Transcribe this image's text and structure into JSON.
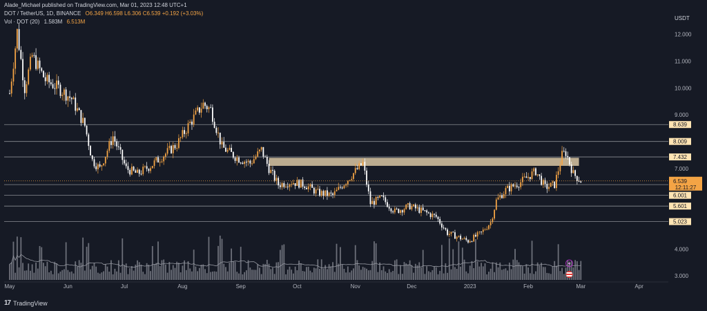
{
  "header": {
    "published": "Alade_Michael published on TradingView.com, Mar 01, 2023 12:48 UTC+1",
    "symbol": "DOT / TetherUS, 1D, BINANCE",
    "ohlc": "O6.349 H6.598 L6.306 C6.539 +0.192 (+3.03%)",
    "volume_label": "Vol · DOT (20)",
    "volume_value": "1.583M",
    "volume_ma": "6.513M"
  },
  "currency": "USDT",
  "brand": "TradingView",
  "colors": {
    "background": "#161a25",
    "up": "#f4a445",
    "down": "#ffffff",
    "level_line": "#8a8d94",
    "zone": "#d9c7a3"
  },
  "icons": [
    "tradingview-logo-icon",
    "lightning-icon",
    "us-flag-icon"
  ],
  "chart_data": {
    "type": "candlestick",
    "title": "DOT / TetherUS, 1D, BINANCE",
    "y_axis_ticks": [
      "12.000",
      "11.000",
      "10.000",
      "9.000",
      "8.000",
      "7.000",
      "6.000",
      "5.000",
      "4.000",
      "3.000"
    ],
    "x_axis_ticks": [
      "May",
      "Jun",
      "Jul",
      "Aug",
      "Sep",
      "Oct",
      "Nov",
      "Dec",
      "2023",
      "Feb",
      "Mar",
      "Apr"
    ],
    "ylim": [
      2.85,
      12.25
    ],
    "last_price": {
      "label": "6.539",
      "countdown": "12:11:27",
      "value": 6.539
    },
    "horizontal_levels": [
      {
        "value": 8.639,
        "label": "8.639"
      },
      {
        "value": 8.009,
        "label": "8.009"
      },
      {
        "value": 7.432,
        "label": "7.432"
      },
      {
        "value": 6.401,
        "label": "6.401"
      },
      {
        "value": 6.001,
        "label": "6.001"
      },
      {
        "value": 5.601,
        "label": "5.601"
      },
      {
        "value": 5.023,
        "label": "5.023"
      }
    ],
    "resistance_zone": {
      "from": 7.1,
      "to": 7.4
    },
    "price_path": [
      [
        "2022-05-01",
        9.8
      ],
      [
        "2022-05-05",
        12.1
      ],
      [
        "2022-05-09",
        10.0
      ],
      [
        "2022-05-13",
        11.2
      ],
      [
        "2022-05-20",
        10.3
      ],
      [
        "2022-05-27",
        10.0
      ],
      [
        "2022-06-03",
        9.6
      ],
      [
        "2022-06-10",
        8.6
      ],
      [
        "2022-06-14",
        7.3
      ],
      [
        "2022-06-18",
        7.0
      ],
      [
        "2022-06-25",
        8.2
      ],
      [
        "2022-07-02",
        7.0
      ],
      [
        "2022-07-08",
        6.8
      ],
      [
        "2022-07-15",
        7.1
      ],
      [
        "2022-07-22",
        7.5
      ],
      [
        "2022-07-29",
        7.9
      ],
      [
        "2022-08-05",
        8.7
      ],
      [
        "2022-08-12",
        9.4
      ],
      [
        "2022-08-16",
        9.2
      ],
      [
        "2022-08-22",
        7.8
      ],
      [
        "2022-08-30",
        7.4
      ],
      [
        "2022-09-06",
        7.2
      ],
      [
        "2022-09-12",
        7.7
      ],
      [
        "2022-09-16",
        7.0
      ],
      [
        "2022-09-21",
        6.4
      ],
      [
        "2022-09-28",
        6.5
      ],
      [
        "2022-10-05",
        6.4
      ],
      [
        "2022-10-12",
        6.1
      ],
      [
        "2022-10-20",
        6.0
      ],
      [
        "2022-10-28",
        6.6
      ],
      [
        "2022-11-05",
        7.2
      ],
      [
        "2022-11-09",
        5.7
      ],
      [
        "2022-11-15",
        5.9
      ],
      [
        "2022-11-22",
        5.4
      ],
      [
        "2022-11-30",
        5.6
      ],
      [
        "2022-12-07",
        5.4
      ],
      [
        "2022-12-14",
        5.2
      ],
      [
        "2022-12-20",
        4.6
      ],
      [
        "2022-12-31",
        4.3
      ],
      [
        "2023-01-07",
        4.6
      ],
      [
        "2023-01-12",
        5.0
      ],
      [
        "2023-01-15",
        5.8
      ],
      [
        "2023-01-20",
        6.2
      ],
      [
        "2023-01-28",
        6.5
      ],
      [
        "2023-02-05",
        6.9
      ],
      [
        "2023-02-10",
        6.3
      ],
      [
        "2023-02-15",
        6.4
      ],
      [
        "2023-02-19",
        7.5
      ],
      [
        "2023-02-21",
        7.6
      ],
      [
        "2023-02-25",
        6.8
      ],
      [
        "2023-03-01",
        6.54
      ]
    ],
    "volume_ma_label": "6.513M"
  }
}
